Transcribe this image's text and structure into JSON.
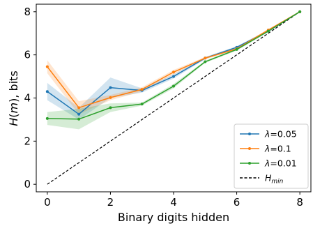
{
  "chart_data": {
    "type": "line",
    "title": "",
    "xlabel": "Binary digits hidden",
    "ylabel": "H(m), bits",
    "xlim": [
      -0.35,
      8.35
    ],
    "ylim": [
      -0.35,
      8.35
    ],
    "xticks": [
      "0",
      "2",
      "4",
      "6",
      "8"
    ],
    "yticks": [
      "0",
      "2",
      "4",
      "6",
      "8"
    ],
    "grid": false,
    "legend_position": "bottom-right",
    "x": [
      0,
      1,
      2,
      3,
      4,
      5,
      6,
      7,
      8
    ],
    "series": [
      {
        "name": "λ=0.05",
        "color": "#1f77b4",
        "values": [
          4.3,
          3.25,
          4.48,
          4.35,
          5.0,
          5.85,
          6.35,
          7.1,
          8.0
        ],
        "band_lower": [
          3.9,
          3.0,
          4.0,
          4.25,
          4.9,
          5.8,
          6.3,
          7.05,
          8.0
        ],
        "band_upper": [
          4.7,
          3.55,
          4.95,
          4.45,
          5.1,
          5.9,
          6.4,
          7.15,
          8.0
        ]
      },
      {
        "name": "λ=0.1",
        "color": "#ff7f0e",
        "values": [
          5.45,
          3.55,
          4.02,
          4.4,
          5.2,
          5.85,
          6.28,
          7.15,
          8.0
        ],
        "band_lower": [
          5.15,
          3.25,
          3.9,
          4.3,
          5.1,
          5.8,
          6.23,
          7.1,
          8.0
        ],
        "band_upper": [
          5.75,
          3.85,
          4.14,
          4.5,
          5.3,
          5.9,
          6.33,
          7.2,
          8.0
        ]
      },
      {
        "name": "λ=0.01",
        "color": "#2ca02c",
        "values": [
          3.05,
          3.02,
          3.55,
          3.72,
          4.55,
          5.68,
          6.25,
          7.1,
          8.0
        ],
        "band_lower": [
          2.75,
          2.55,
          3.35,
          3.65,
          4.45,
          5.63,
          6.2,
          7.05,
          8.0
        ],
        "band_upper": [
          3.35,
          3.5,
          3.75,
          3.79,
          4.65,
          5.73,
          6.3,
          7.15,
          8.0
        ]
      }
    ],
    "reference_line": {
      "name": "H_min",
      "color": "#000000",
      "style": "dashed",
      "x": [
        0,
        8
      ],
      "y": [
        0,
        8
      ]
    }
  }
}
